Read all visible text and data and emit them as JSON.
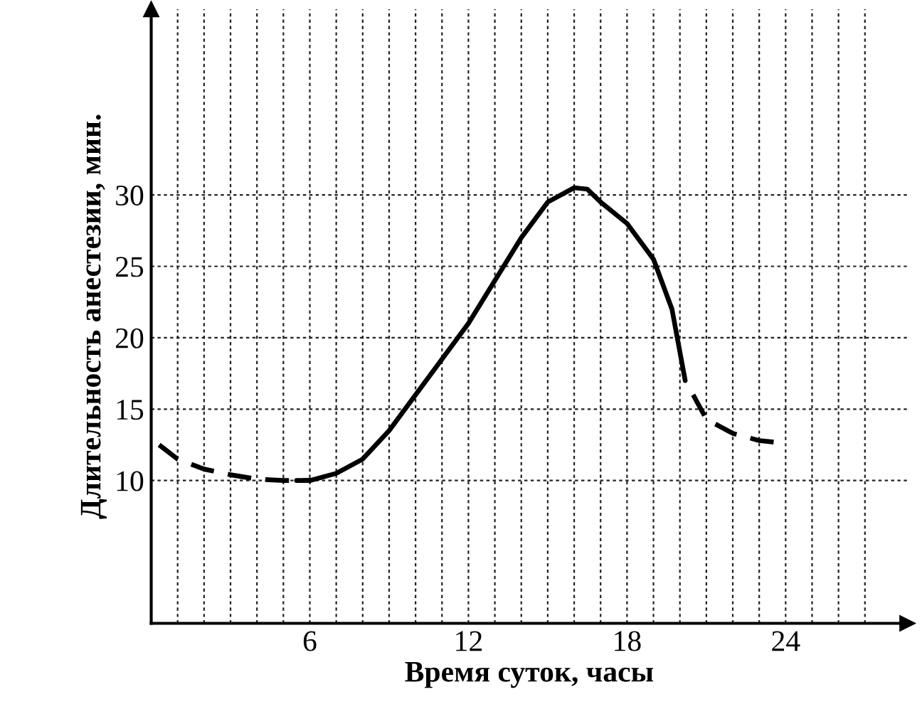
{
  "chart_data": {
    "type": "line",
    "xlabel": "Время суток, часы",
    "ylabel": "Длительность анестезии, мин.",
    "xlim": [
      0,
      28.6
    ],
    "ylim": [
      0,
      43
    ],
    "xticks": [
      {
        "value": 1,
        "label": null
      },
      {
        "value": 2,
        "label": null
      },
      {
        "value": 3,
        "label": null
      },
      {
        "value": 4,
        "label": null
      },
      {
        "value": 5,
        "label": null
      },
      6,
      {
        "value": 7,
        "label": null
      },
      {
        "value": 8,
        "label": null
      },
      {
        "value": 9,
        "label": null
      },
      {
        "value": 10,
        "label": null
      },
      {
        "value": 11,
        "label": null
      },
      12,
      {
        "value": 13,
        "label": null
      },
      {
        "value": 14,
        "label": null
      },
      {
        "value": 15,
        "label": null
      },
      {
        "value": 16,
        "label": null
      },
      {
        "value": 17,
        "label": null
      },
      18,
      {
        "value": 19,
        "label": null
      },
      {
        "value": 20,
        "label": null
      },
      {
        "value": 21,
        "label": null
      },
      {
        "value": 22,
        "label": null
      },
      {
        "value": 23,
        "label": null
      },
      24,
      {
        "value": 25,
        "label": null
      },
      {
        "value": 26,
        "label": null
      },
      {
        "value": 27,
        "label": null
      }
    ],
    "yticks": [
      10,
      15,
      20,
      25,
      30
    ],
    "grid": true,
    "series": [
      {
        "color": "#000000",
        "line_style": "dashed",
        "x": [
          0.3,
          1,
          2,
          3,
          4,
          5,
          6
        ],
        "values": [
          12.5,
          11.5,
          10.8,
          10.4,
          10.1,
          10.0,
          10.0
        ]
      },
      {
        "color": "#000000",
        "line_style": "solid",
        "x": [
          5.5,
          6,
          7,
          8,
          9,
          10,
          11,
          12,
          13,
          14,
          15,
          16,
          16.5,
          17,
          18,
          19,
          19.7,
          20.2
        ],
        "values": [
          10,
          10,
          10.5,
          11.5,
          13.5,
          16,
          18.5,
          21,
          24,
          27,
          29.5,
          30.5,
          30.4,
          29.5,
          28,
          25.5,
          22,
          17
        ]
      },
      {
        "color": "#000000",
        "line_style": "dashed",
        "x": [
          20.5,
          21,
          22,
          23,
          24
        ],
        "values": [
          16,
          14.3,
          13.3,
          12.8,
          12.6
        ]
      }
    ]
  }
}
